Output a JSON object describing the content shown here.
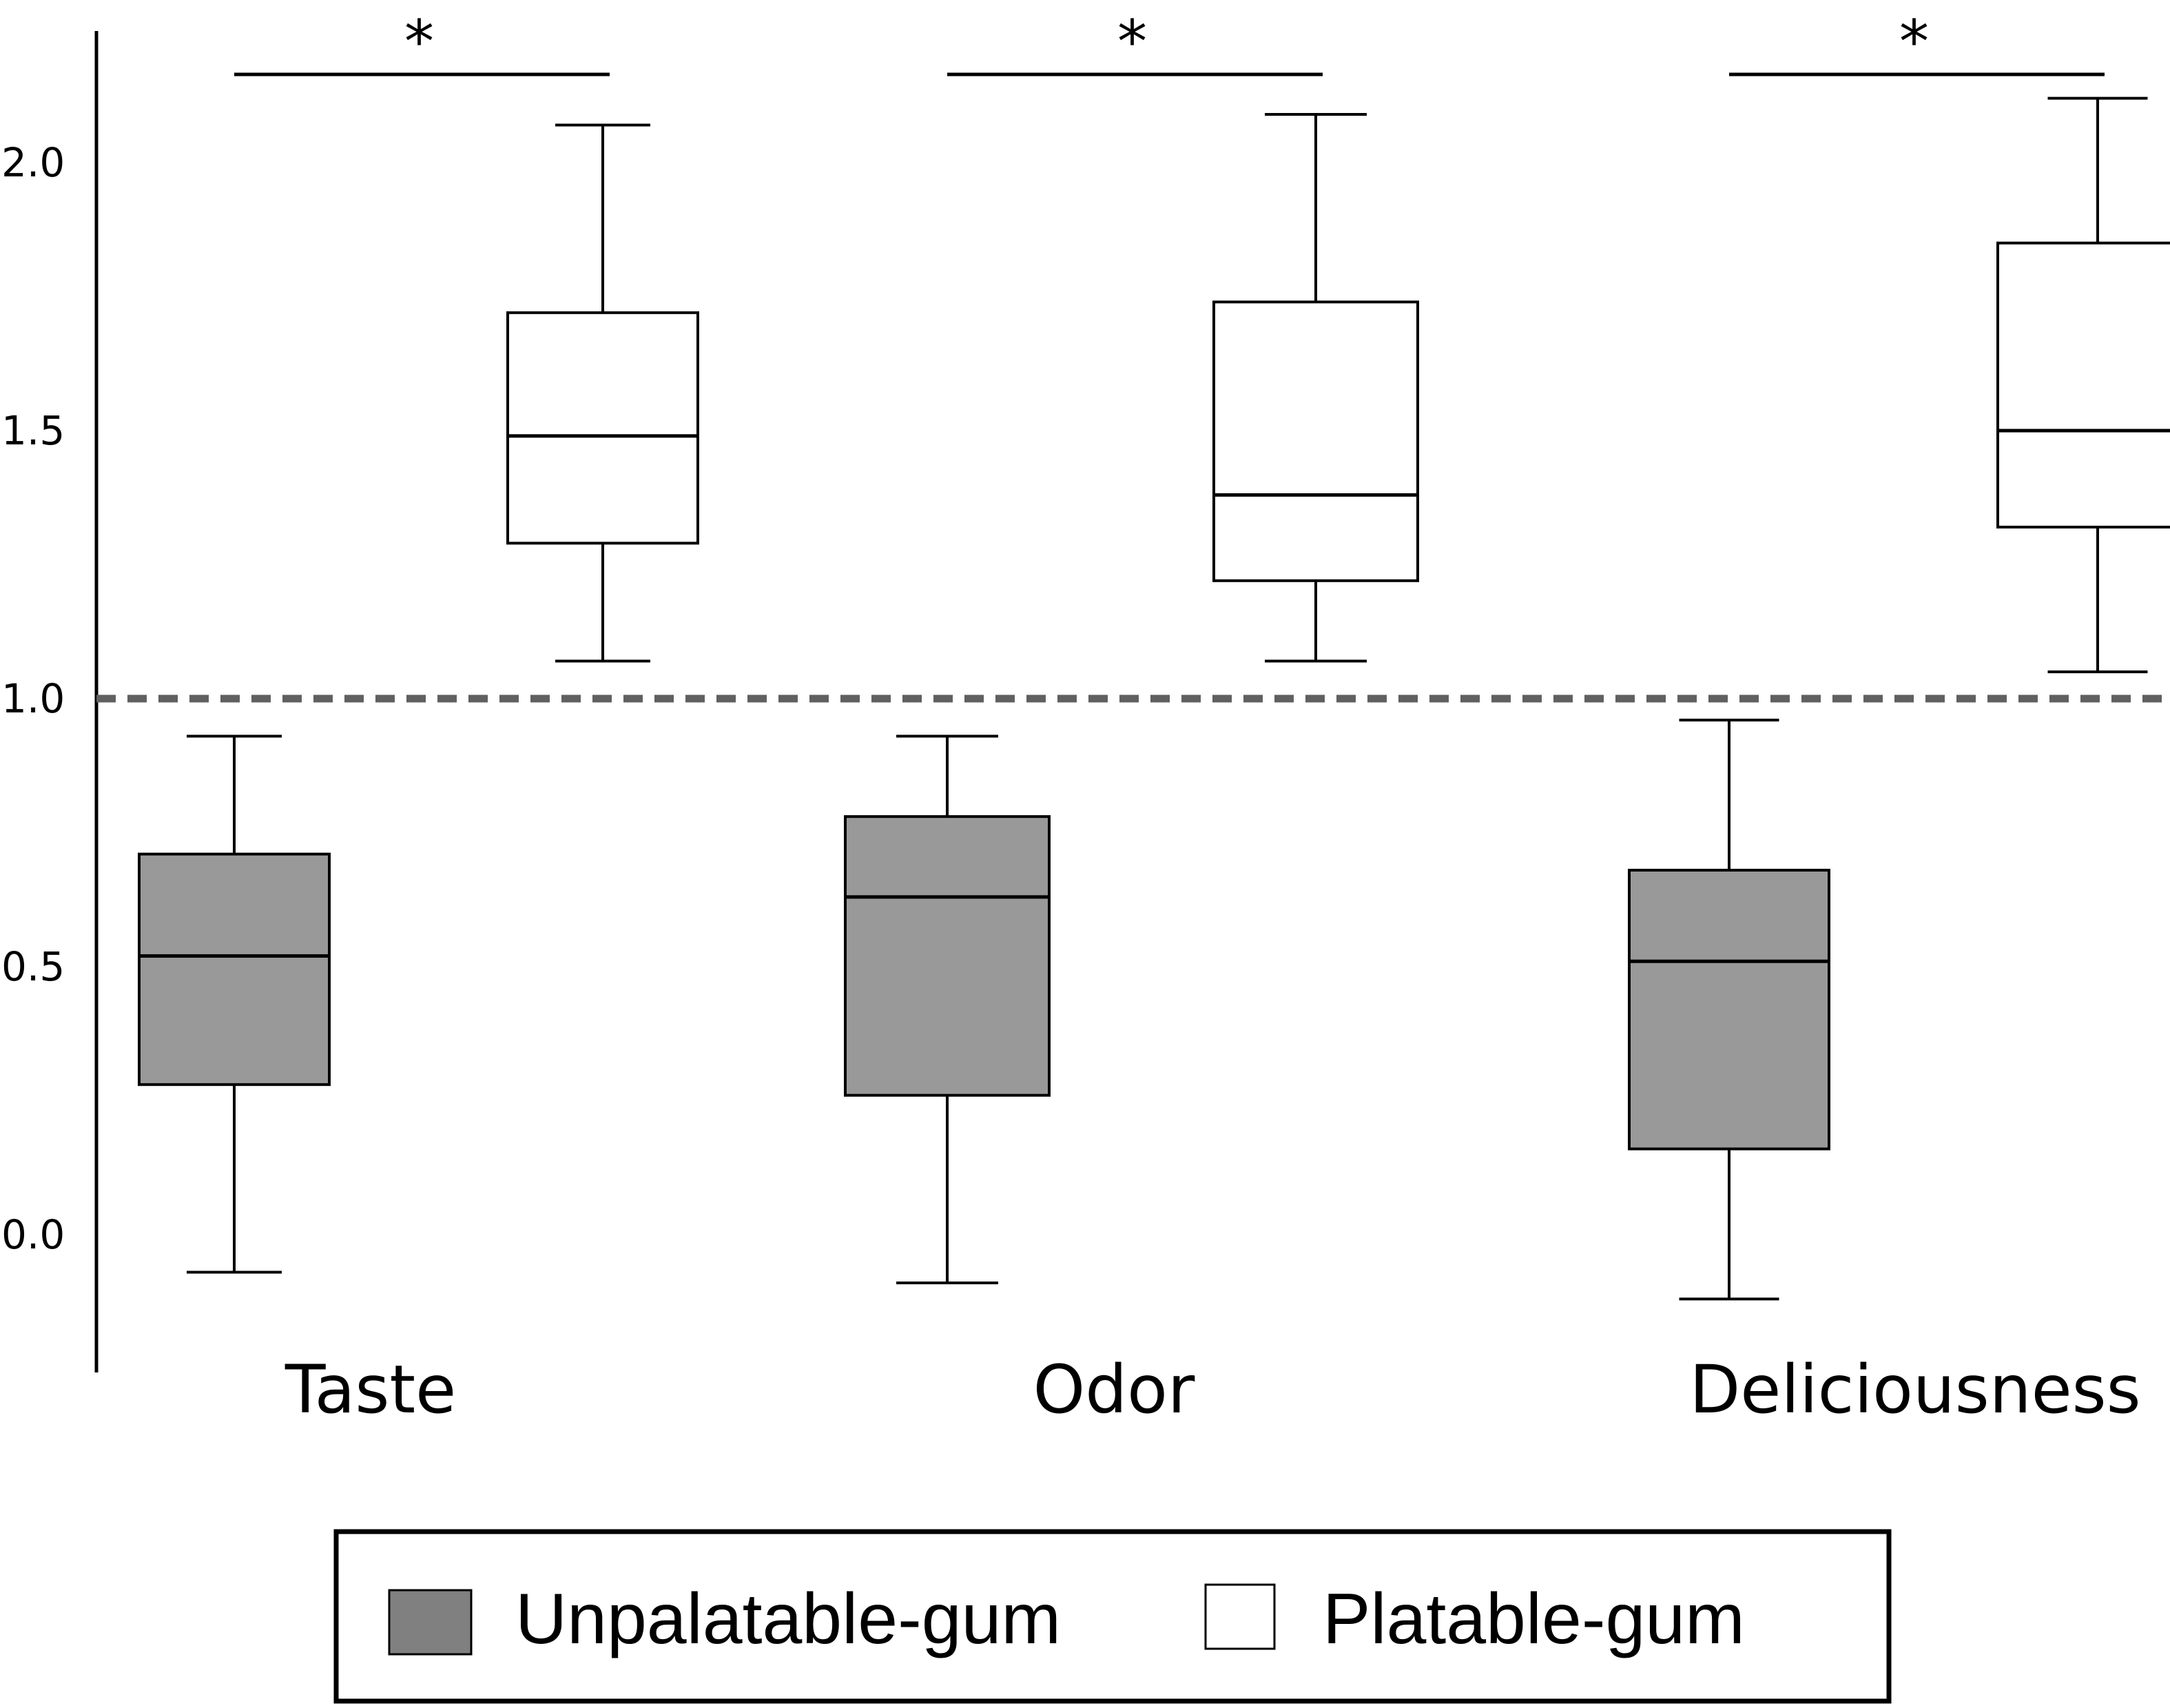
{
  "chart_data": {
    "type": "box",
    "categories": [
      "Taste",
      "Odor",
      "Deliciousness"
    ],
    "y_ticks": [
      "0.0",
      "0.5",
      "1.0",
      "1.5",
      "2.0"
    ],
    "ylim": [
      -0.25,
      2.25
    ],
    "reference_line": {
      "y": 1.0,
      "style": "dashed",
      "color": "#606060"
    },
    "grid": false,
    "legend_position": "bottom-center",
    "series": [
      {
        "name": "Unpalatable-gum",
        "color": "#999999",
        "legend_color": "#808080",
        "boxes": [
          {
            "whisker_low": -0.07,
            "q1": 0.28,
            "median": 0.52,
            "q3": 0.71,
            "whisker_high": 0.93
          },
          {
            "whisker_low": -0.09,
            "q1": 0.26,
            "median": 0.63,
            "q3": 0.78,
            "whisker_high": 0.93
          },
          {
            "whisker_low": -0.12,
            "q1": 0.16,
            "median": 0.51,
            "q3": 0.68,
            "whisker_high": 0.96
          }
        ]
      },
      {
        "name": "Platable-gum",
        "color": "#ffffff",
        "legend_color": "#ffffff",
        "boxes": [
          {
            "whisker_low": 1.07,
            "q1": 1.29,
            "median": 1.49,
            "q3": 1.72,
            "whisker_high": 2.07
          },
          {
            "whisker_low": 1.07,
            "q1": 1.22,
            "median": 1.38,
            "q3": 1.74,
            "whisker_high": 2.09
          },
          {
            "whisker_low": 1.05,
            "q1": 1.32,
            "median": 1.5,
            "q3": 1.85,
            "whisker_high": 2.12
          }
        ]
      }
    ],
    "significance_marker": "*"
  }
}
